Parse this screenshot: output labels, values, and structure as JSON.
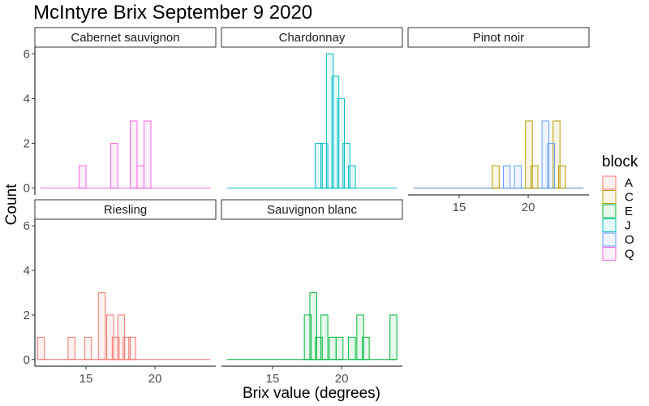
{
  "chart_data": {
    "type": "histogram",
    "title": "McIntyre Brix September 9 2020",
    "xlabel": "Brix value (degrees)",
    "ylabel": "Count",
    "xlim": [
      11.3,
      24.4
    ],
    "ylim": [
      -0.3,
      6.3
    ],
    "xticks": [
      15,
      20
    ],
    "yticks": [
      0,
      2,
      4,
      6
    ],
    "bin_width": 0.5,
    "legend": {
      "title": "block",
      "position": "right",
      "items": [
        {
          "label": "A",
          "color": "#F8766D"
        },
        {
          "label": "C",
          "color": "#B79F00"
        },
        {
          "label": "E",
          "color": "#00BA38"
        },
        {
          "label": "J",
          "color": "#00BFC4"
        },
        {
          "label": "O",
          "color": "#619CFF"
        },
        {
          "label": "Q",
          "color": "#F564E3"
        }
      ]
    },
    "facets": [
      {
        "name": "Cabernet sauvignon",
        "series": [
          {
            "block": "Q",
            "color": "#F564E3",
            "bins": [
              [
                14.5,
                1
              ],
              [
                16.8,
                2
              ],
              [
                18.2,
                3
              ],
              [
                18.7,
                1
              ],
              [
                19.2,
                3
              ]
            ]
          }
        ]
      },
      {
        "name": "Chardonnay",
        "series": [
          {
            "block": "J",
            "color": "#00BFC4",
            "bins": [
              [
                18.1,
                2
              ],
              [
                18.5,
                2
              ],
              [
                18.9,
                6
              ],
              [
                19.3,
                5
              ],
              [
                19.7,
                4
              ],
              [
                20.1,
                2
              ],
              [
                20.5,
                1
              ]
            ]
          }
        ]
      },
      {
        "name": "Pinot noir",
        "series": [
          {
            "block": "C",
            "color": "#B79F00",
            "bins": [
              [
                17.4,
                1
              ],
              [
                19.8,
                3
              ],
              [
                20.2,
                1
              ],
              [
                21.8,
                3
              ],
              [
                22.2,
                1
              ]
            ]
          },
          {
            "block": "O",
            "color": "#619CFF",
            "bins": [
              [
                18.2,
                1
              ],
              [
                19.0,
                1
              ],
              [
                21.0,
                3
              ],
              [
                21.4,
                2
              ]
            ]
          }
        ]
      },
      {
        "name": "Riesling",
        "series": [
          {
            "block": "A",
            "color": "#F8766D",
            "bins": [
              [
                11.5,
                1
              ],
              [
                13.7,
                1
              ],
              [
                14.9,
                1
              ],
              [
                15.9,
                3
              ],
              [
                16.5,
                2
              ],
              [
                16.9,
                1
              ],
              [
                17.3,
                2
              ],
              [
                17.7,
                1
              ],
              [
                18.1,
                1
              ]
            ]
          }
        ]
      },
      {
        "name": "Sauvignon blanc",
        "series": [
          {
            "block": "E",
            "color": "#00BA38",
            "bins": [
              [
                17.3,
                2
              ],
              [
                17.7,
                3
              ],
              [
                18.1,
                1
              ],
              [
                18.5,
                2
              ],
              [
                19.1,
                1
              ],
              [
                19.6,
                1
              ],
              [
                20.5,
                1
              ],
              [
                21.1,
                2
              ],
              [
                21.5,
                1
              ],
              [
                23.5,
                2
              ]
            ]
          }
        ]
      }
    ]
  }
}
